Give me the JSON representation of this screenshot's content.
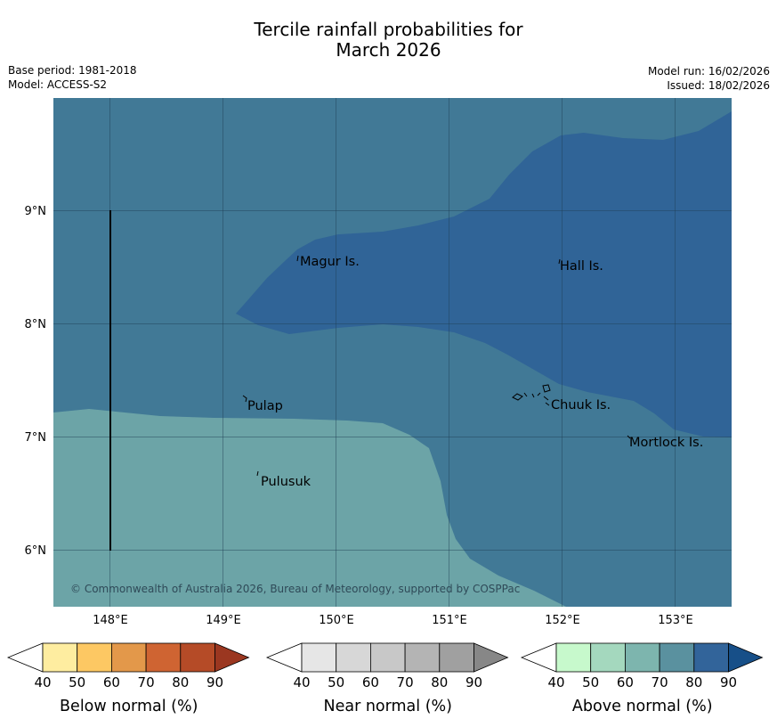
{
  "title_line1": "Tercile rainfall probabilities for",
  "title_line2": "March 2026",
  "base_period": "Base period: 1981-2018",
  "model": "Model: ACCESS-S2",
  "model_run": "Model run: 16/02/2026",
  "issued": "Issued: 18/02/2026",
  "map": {
    "lat_ticks": [
      "9°N",
      "8°N",
      "7°N",
      "6°N"
    ],
    "lon_ticks": [
      "148°E",
      "149°E",
      "150°E",
      "151°E",
      "152°E",
      "153°E"
    ],
    "places": [
      "Magur Is.",
      "Hall Is.",
      "Pulap",
      "Chuuk Is.",
      "Mortlock Is.",
      "Pulusuk"
    ],
    "copyright": "© Commonwealth of Australia 2026, Bureau of Meteorology, supported by COSPPac"
  },
  "legends": {
    "below": {
      "label": "Below normal (%)",
      "ticks": [
        "40",
        "50",
        "60",
        "70",
        "80",
        "90"
      ],
      "colors": [
        "#ffffff",
        "#feeda0",
        "#fdc863",
        "#e3984a",
        "#cf6432",
        "#b54b27",
        "#9b3720"
      ]
    },
    "near": {
      "label": "Near normal (%)",
      "ticks": [
        "40",
        "50",
        "60",
        "70",
        "80",
        "90"
      ],
      "colors": [
        "#ffffff",
        "#e6e6e6",
        "#d7d7d7",
        "#c8c8c8",
        "#b4b4b4",
        "#a0a0a0",
        "#878787"
      ]
    },
    "above": {
      "label": "Above normal (%)",
      "ticks": [
        "40",
        "50",
        "60",
        "70",
        "80",
        "90"
      ],
      "colors": [
        "#ffffff",
        "#c7f9cc",
        "#a4d8be",
        "#7db5ae",
        "#5a919f",
        "#32649a",
        "#174f88"
      ]
    }
  },
  "zone_colors": {
    "above_60_70": "#6ca4a7",
    "above_70_80": "#417996",
    "above_80_90": "#306497"
  }
}
